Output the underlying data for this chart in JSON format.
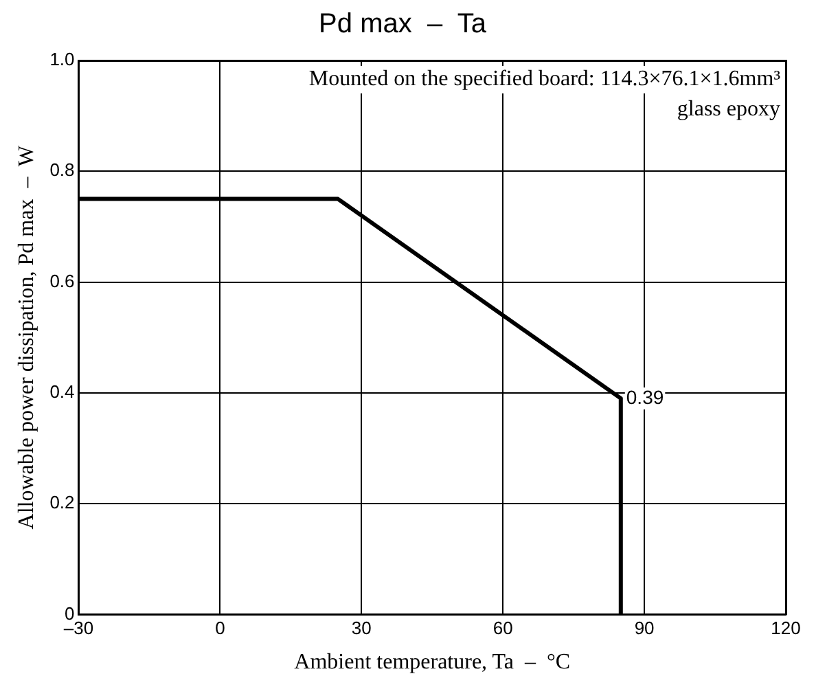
{
  "chart_data": {
    "type": "line",
    "title": "Pd max  –  Ta",
    "xlabel": "Ambient temperature, Ta  –  °C",
    "ylabel": "Allowable power dissipation, Pd max  –  W",
    "x": [
      -30,
      25,
      85,
      85
    ],
    "series": [
      {
        "color": "#000000",
        "values": [
          0.75,
          0.75,
          0.39,
          0
        ]
      }
    ],
    "xlim": [
      -30,
      120
    ],
    "xticks": [
      {
        "value": -30,
        "label": "–30"
      },
      0,
      30,
      60,
      90,
      120
    ],
    "ylim": [
      0,
      1
    ],
    "yticks": [
      0,
      0.2,
      0.4,
      0.6,
      0.8,
      {
        "value": 1,
        "label": "1.0"
      }
    ],
    "grid": true,
    "legend": false,
    "marker": "none",
    "line_style": "solid",
    "annotations": [
      "Mounted on the specified board: 114.3×76.1×1.6mm³",
      "glass epoxy",
      {
        "text": "0.39",
        "x": 85,
        "y": 0.39
      }
    ]
  }
}
